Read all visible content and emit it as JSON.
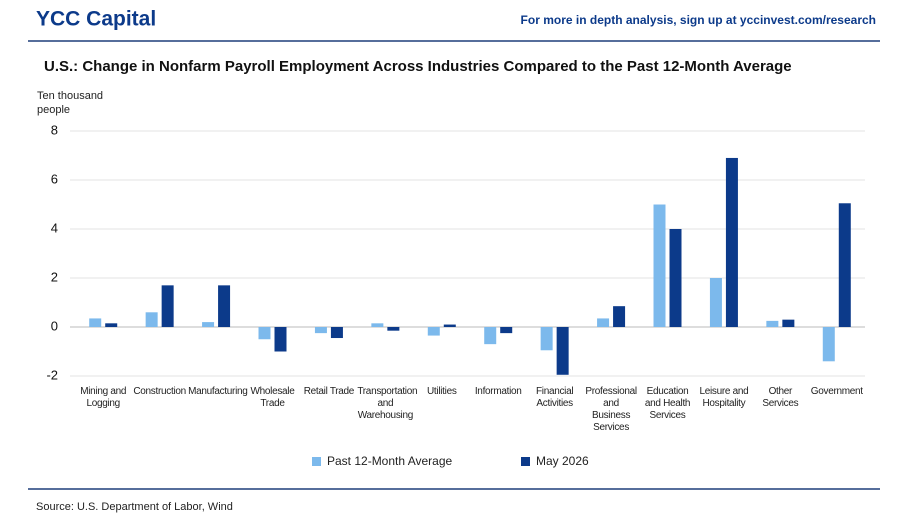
{
  "header": {
    "brand": "YCC Capital",
    "note": "For more in depth analysis, sign up at yccinvest.com/research"
  },
  "chart_data": {
    "type": "bar",
    "title": "U.S.: Change in Nonfarm Payroll Employment Across Industries Compared to the Past 12-Month Average",
    "y_label": "Ten thousand people",
    "categories": [
      "Mining and Logging",
      "Construction",
      "Manufacturing",
      "Wholesale Trade",
      "Retail Trade",
      "Transportation and Warehousing",
      "Utilities",
      "Information",
      "Financial Activities",
      "Professional and Business Services",
      "Education and Health Services",
      "Leisure and Hospitality",
      "Other Services",
      "Government"
    ],
    "series": [
      {
        "name": "Past 12-Month Average",
        "color": "#7cb9ec",
        "values": [
          0.35,
          0.6,
          0.2,
          -0.5,
          -0.25,
          0.15,
          -0.35,
          -0.7,
          -0.95,
          0.35,
          5.0,
          2.0,
          0.25,
          -1.4
        ]
      },
      {
        "name": "May 2026",
        "color": "#0c3a8a",
        "values": [
          0.15,
          1.7,
          1.7,
          -1.0,
          -0.45,
          -0.15,
          0.1,
          -0.25,
          -1.95,
          0.85,
          4.0,
          6.9,
          0.3,
          5.05
        ]
      }
    ],
    "ylim": [
      -2,
      8
    ],
    "yticks": [
      -2,
      0,
      2,
      4,
      6,
      8
    ],
    "grid": true,
    "legend": "bottom"
  },
  "footer": {
    "source": "Source: U.S. Department of Labor, Wind"
  }
}
